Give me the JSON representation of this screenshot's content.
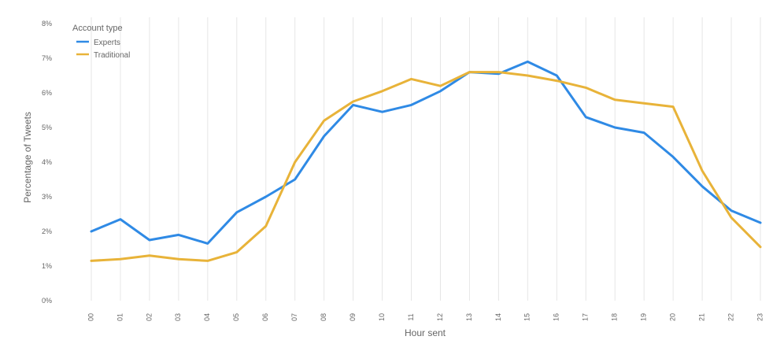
{
  "chart_data": {
    "type": "line",
    "xlabel": "Hour sent",
    "ylabel": "Percentage of Tweets",
    "ylim": [
      0,
      8
    ],
    "y_ticks": [
      "0%",
      "1%",
      "2%",
      "3%",
      "4%",
      "5%",
      "6%",
      "7%",
      "8%"
    ],
    "categories": [
      "00",
      "01",
      "02",
      "03",
      "04",
      "05",
      "06",
      "07",
      "08",
      "09",
      "10",
      "11",
      "12",
      "13",
      "14",
      "15",
      "16",
      "17",
      "18",
      "19",
      "20",
      "21",
      "22",
      "23"
    ],
    "grid": "vertical",
    "legend": {
      "title": "Account type",
      "position": "top-left"
    },
    "series": [
      {
        "name": "Experts",
        "color": "#2f8ae5",
        "values": [
          2.0,
          2.35,
          1.75,
          1.9,
          1.65,
          2.55,
          3.0,
          3.5,
          4.75,
          5.65,
          5.45,
          5.65,
          6.05,
          6.6,
          6.55,
          6.9,
          6.5,
          5.3,
          5.0,
          4.85,
          4.15,
          3.3,
          2.6,
          2.25
        ]
      },
      {
        "name": "Traditional",
        "color": "#e8b339",
        "values": [
          1.15,
          1.2,
          1.3,
          1.2,
          1.15,
          1.4,
          2.15,
          4.0,
          5.2,
          5.75,
          6.05,
          6.4,
          6.2,
          6.6,
          6.6,
          6.5,
          6.35,
          6.15,
          5.8,
          5.7,
          5.6,
          3.75,
          2.4,
          1.55
        ]
      }
    ]
  }
}
